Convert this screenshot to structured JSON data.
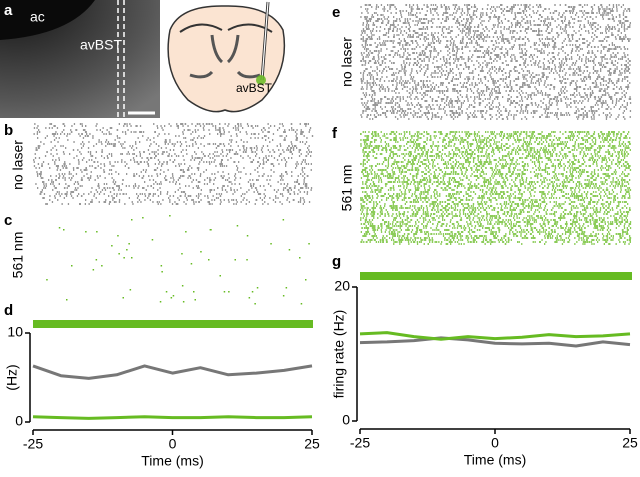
{
  "figure": {
    "panel_labels": [
      "a",
      "b",
      "c",
      "d",
      "e",
      "f",
      "g"
    ],
    "image_labels": [
      "ac",
      "avBST"
    ],
    "schematic_label": "avBST",
    "raster_labels": [
      "no laser",
      "561 nm",
      "no laser",
      "561 nm"
    ]
  },
  "chart_data": [
    {
      "type": "line",
      "x": [
        -25,
        -20,
        -15,
        -10,
        -5,
        0,
        5,
        10,
        15,
        20,
        25
      ],
      "xlim": [
        -25,
        25
      ],
      "xticks": [
        -25,
        0,
        25
      ],
      "ylim": [
        0,
        10
      ],
      "yticks": [
        0,
        10
      ],
      "xlabel": "Time (ms)",
      "ylabel": "(Hz)",
      "series": [
        {
          "name": "no laser",
          "color": "#777777",
          "values": [
            6.3,
            5.2,
            4.9,
            5.3,
            6.3,
            5.5,
            6.1,
            5.3,
            5.5,
            5.8,
            6.3
          ]
        },
        {
          "name": "561 nm",
          "color": "#66bb22",
          "values": [
            0.6,
            0.5,
            0.4,
            0.5,
            0.6,
            0.5,
            0.5,
            0.6,
            0.5,
            0.5,
            0.6
          ]
        }
      ]
    },
    {
      "type": "line",
      "x": [
        -25,
        -20,
        -15,
        -10,
        -5,
        0,
        5,
        10,
        15,
        20,
        25
      ],
      "xlim": [
        -25,
        25
      ],
      "xticks": [
        -25,
        0,
        25
      ],
      "ylim": [
        0,
        20
      ],
      "yticks": [
        0,
        20
      ],
      "xlabel": "Time (ms)",
      "ylabel": "firing rate (Hz)",
      "series": [
        {
          "name": "no laser",
          "color": "#777777",
          "values": [
            11.7,
            11.8,
            12.0,
            12.4,
            12.1,
            11.6,
            11.5,
            11.6,
            11.2,
            11.8,
            11.4
          ]
        },
        {
          "name": "561 nm",
          "color": "#66bb22",
          "values": [
            13.0,
            13.2,
            12.6,
            12.2,
            12.6,
            12.3,
            12.5,
            12.9,
            12.6,
            12.7,
            13.0
          ]
        }
      ]
    }
  ]
}
